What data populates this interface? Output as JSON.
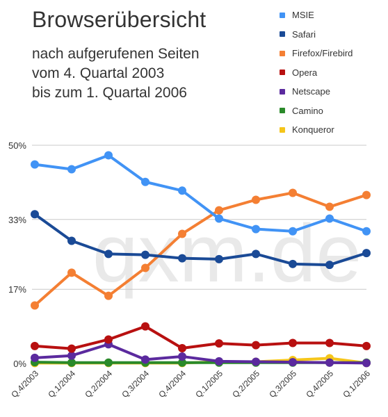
{
  "header": {
    "title": "Browserübersicht",
    "subtitle_lines": [
      "nach aufgerufenen Seiten",
      "vom 4. Quartal 2003",
      "bis zum 1. Quartal 2006"
    ]
  },
  "watermark": "qxm.de",
  "chart_data": {
    "type": "line",
    "title": "Browserübersicht",
    "subtitle": "nach aufgerufenen Seiten vom 4. Quartal 2003 bis zum 1. Quartal 2006",
    "xlabel": "",
    "ylabel": "",
    "ylim": [
      0,
      50
    ],
    "yticks": [
      0,
      17,
      33,
      50
    ],
    "ytick_labels": [
      "0%",
      "17%",
      "33%",
      "50%"
    ],
    "grid": true,
    "legend": "top-right",
    "categories": [
      "Q.4/2003",
      "Q.1/2004",
      "Q.2/2004",
      "Q.3/2004",
      "Q.4/2004",
      "Q.1/2005",
      "Q.2/2005",
      "Q.3/2005",
      "Q.4/2005",
      "Q.1/2006"
    ],
    "series": [
      {
        "name": "MSIE",
        "color": "#4193f5",
        "values": [
          45.6,
          44.5,
          47.7,
          41.6,
          39.6,
          33.2,
          30.8,
          30.3,
          33.2,
          30.3
        ]
      },
      {
        "name": "Safari",
        "color": "#1a4a96",
        "values": [
          34.2,
          28.1,
          25.1,
          24.9,
          24.1,
          23.9,
          25.1,
          22.8,
          22.6,
          25.3
        ]
      },
      {
        "name": "Firefox/Firebird",
        "color": "#f47f33",
        "values": [
          13.3,
          20.8,
          15.5,
          21.9,
          29.7,
          35.1,
          37.5,
          39.1,
          35.9,
          38.6
        ]
      },
      {
        "name": "Opera",
        "color": "#b81010",
        "values": [
          4.0,
          3.4,
          5.5,
          8.5,
          3.5,
          4.6,
          4.2,
          4.7,
          4.7,
          4.0
        ]
      },
      {
        "name": "Netscape",
        "color": "#5b2a9e",
        "values": [
          1.3,
          1.8,
          4.4,
          0.9,
          1.6,
          0.5,
          0.4,
          0.3,
          0.2,
          0.1
        ]
      },
      {
        "name": "Camino",
        "color": "#2a8a2a",
        "values": [
          0.3,
          0.2,
          0.2,
          0.2,
          0.2,
          0.2,
          0.2,
          0.2,
          0.2,
          0.2
        ]
      },
      {
        "name": "Konqueror",
        "color": "#f5c51a",
        "values": [
          0.1,
          0.1,
          0.1,
          0.1,
          0.1,
          0.4,
          0.4,
          0.8,
          1.2,
          0.1
        ]
      }
    ]
  }
}
